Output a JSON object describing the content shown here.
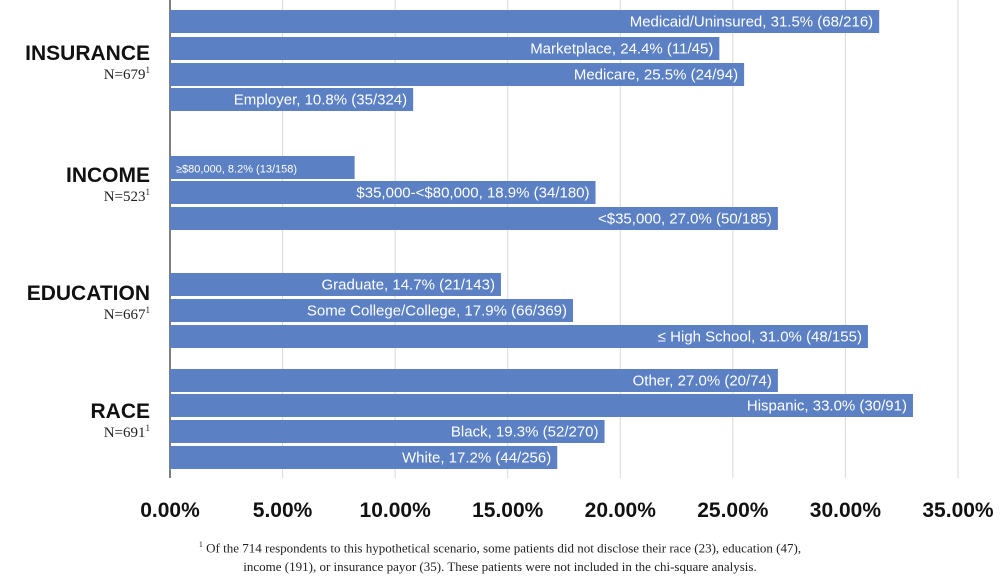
{
  "chart_data": {
    "type": "bar",
    "orientation": "horizontal",
    "xlim": [
      0,
      35
    ],
    "x_ticks": [
      "0.00%",
      "5.00%",
      "10.00%",
      "15.00%",
      "20.00%",
      "25.00%",
      "30.00%",
      "35.00%"
    ],
    "grid": true,
    "bar_color": "#5b80c3",
    "groups": [
      {
        "name": "INSURANCE",
        "n": "N=679",
        "sup": "1",
        "bars": [
          {
            "label": "Medicaid/Uninsured, 31.5% (68/216)",
            "value": 31.5
          },
          {
            "label": "Marketplace, 24.4% (11/45)",
            "value": 24.4
          },
          {
            "label": "Medicare, 25.5% (24/94)",
            "value": 25.5
          },
          {
            "label": "Employer, 10.8% (35/324)",
            "value": 10.8
          }
        ]
      },
      {
        "name": "INCOME",
        "n": "N=523",
        "sup": "1",
        "bars": [
          {
            "label": "≥$80,000, 8.2% (13/158)",
            "value": 8.2
          },
          {
            "label": "$35,000-<$80,000, 18.9% (34/180)",
            "value": 18.9
          },
          {
            "label": "<$35,000, 27.0% (50/185)",
            "value": 27.0
          }
        ]
      },
      {
        "name": "EDUCATION",
        "n": "N=667",
        "sup": "1",
        "bars": [
          {
            "label": "Graduate, 14.7% (21/143)",
            "value": 14.7
          },
          {
            "label": "Some College/College, 17.9% (66/369)",
            "value": 17.9
          },
          {
            "label": "≤ High School, 31.0% (48/155)",
            "value": 31.0
          }
        ]
      },
      {
        "name": "RACE",
        "n": "N=691",
        "sup": "1",
        "bars": [
          {
            "label": "Other, 27.0% (20/74)",
            "value": 27.0
          },
          {
            "label": "Hispanic, 33.0% (30/91)",
            "value": 33.0
          },
          {
            "label": "Black, 19.3% (52/270)",
            "value": 19.3
          },
          {
            "label": "White, 17.2% (44/256)",
            "value": 17.2
          }
        ]
      }
    ]
  },
  "footnote": {
    "sup": "1",
    "line1": " Of the 714 respondents to this hypothetical scenario, some patients did not disclose their race (23), education (47),",
    "line2": "income (191), or insurance payor (35). These patients were not included in the chi-square analysis."
  }
}
